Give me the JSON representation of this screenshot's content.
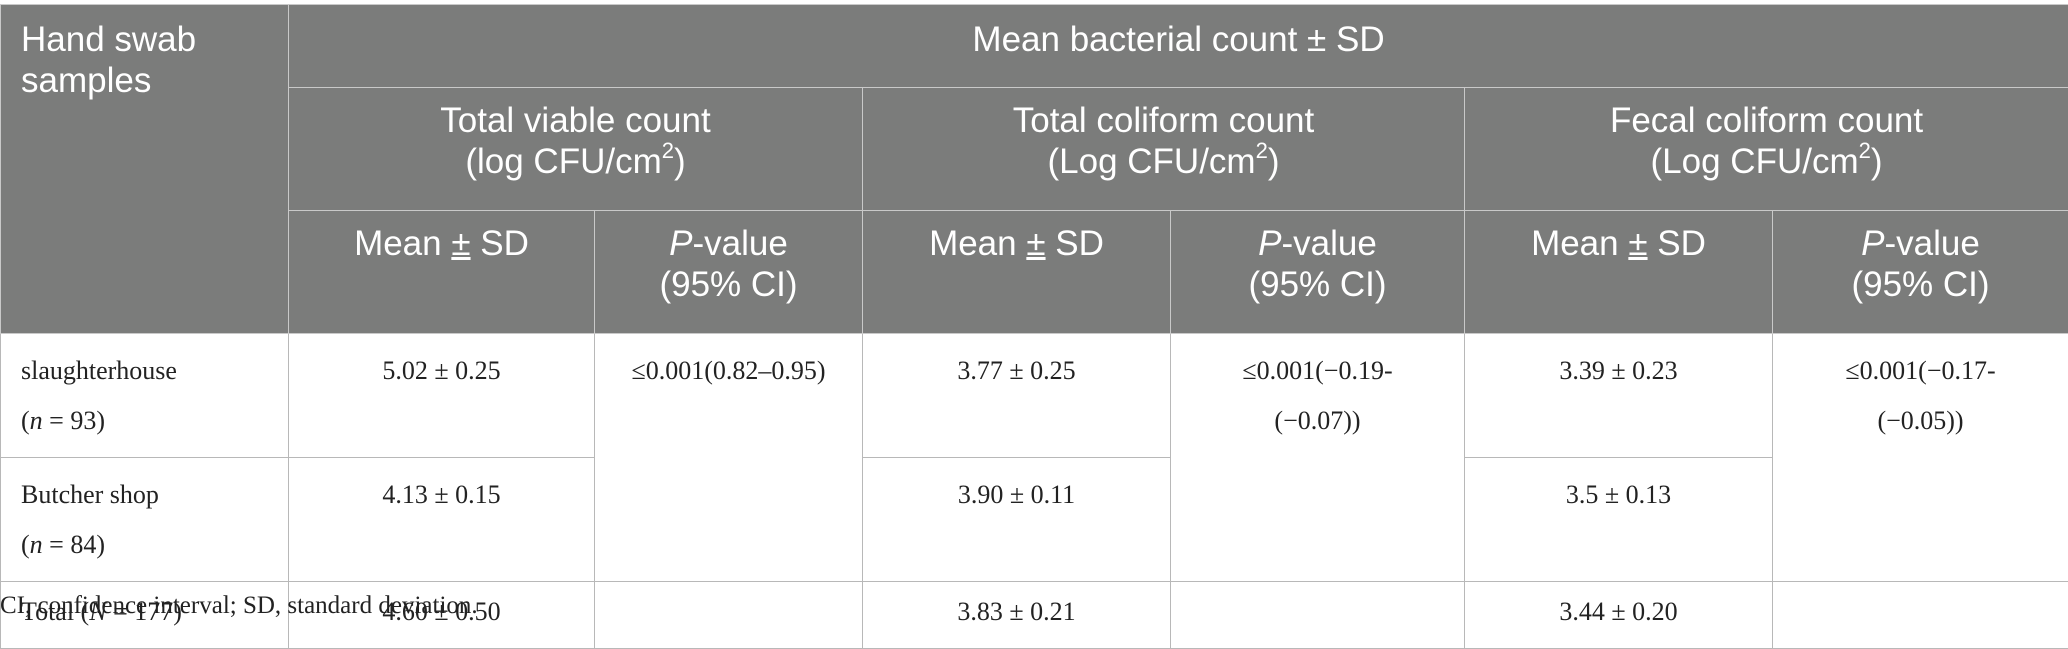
{
  "header": {
    "corner": [
      "Hand swab",
      "samples"
    ],
    "group_title": "Mean bacterial count ± SD",
    "groups": [
      {
        "line1": "Total viable count",
        "line2_pre": "(log CFU/cm",
        "line2_sup": "2",
        "line2_post": ")"
      },
      {
        "line1": "Total coliform count",
        "line2_pre": "(Log CFU/cm",
        "line2_sup": "2",
        "line2_post": ")"
      },
      {
        "line1": "Fecal coliform count",
        "line2_pre": "(Log CFU/cm",
        "line2_sup": "2",
        "line2_post": ")"
      }
    ],
    "mean_sd": {
      "pre": "Mean ",
      "pm": "±",
      "post": " SD"
    },
    "pvalue": {
      "p": "P",
      "rest": "-value",
      "ci": "(95% CI)"
    }
  },
  "rows": [
    {
      "label": "slaughterhouse",
      "n_pre": "(",
      "n_var": "n",
      "n_post": " = 93)",
      "tvc": "5.02 ± 0.25",
      "tcc": "3.77 ± 0.25",
      "fcc": "3.39 ± 0.23"
    },
    {
      "label": "Butcher shop",
      "n_pre": "(",
      "n_var": "n",
      "n_post": " = 84)",
      "tvc": "4.13 ± 0.15",
      "tcc": "3.90 ± 0.11",
      "fcc": "3.5 ± 0.13"
    },
    {
      "label_pre": "Total (",
      "n_var": "N",
      "label_post": " = 177)",
      "tvc": "4.60 ± 0.50",
      "tcc": "3.83 ± 0.21",
      "fcc": "3.44 ± 0.20"
    }
  ],
  "pvalues": {
    "tvc": "≤0.001(0.82–0.95)",
    "tcc": [
      "≤0.001(−0.19-",
      "(−0.07))"
    ],
    "fcc": [
      "≤0.001(−0.17-",
      "(−0.05))"
    ]
  },
  "footnote": "CI, confidence interval; SD, standard deviation."
}
